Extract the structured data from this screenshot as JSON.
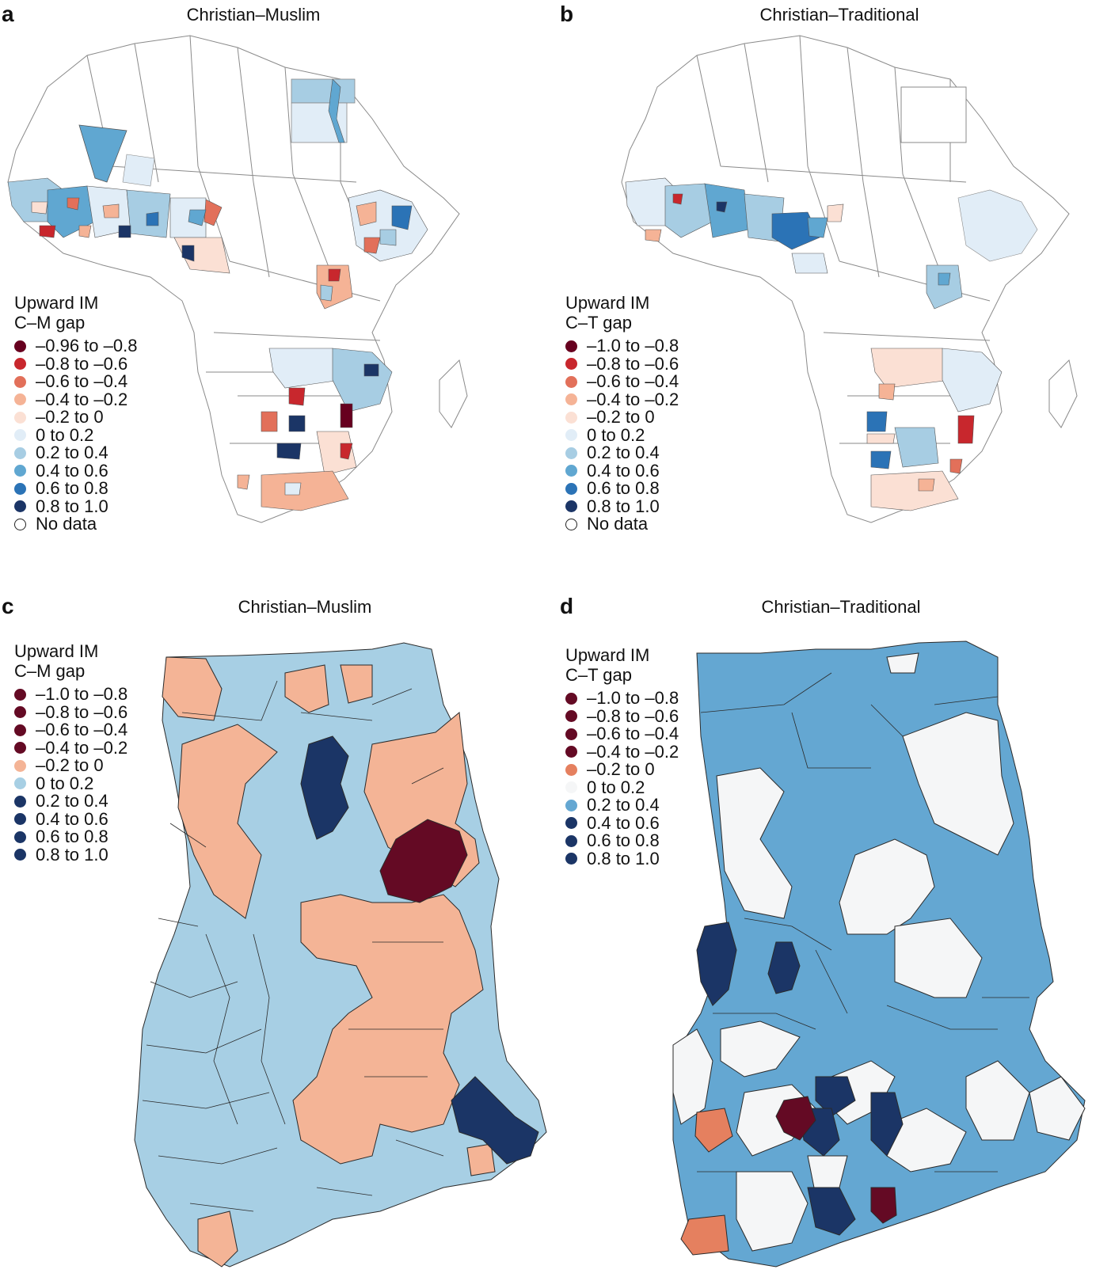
{
  "colors": {
    "neg96": "#67001f",
    "neg8": "#c8272d",
    "neg6": "#e2705a",
    "neg4": "#f5b396",
    "neg2": "#fbe0d4",
    "pos0": "#e1edf7",
    "pos2": "#a7cde3",
    "pos4": "#60a7d1",
    "pos6": "#2b73b6",
    "pos8": "#1b3566",
    "ghana_neg": "#f4b496",
    "ghana_pos": "#a7cfe4",
    "ghana_dark": "#1b3566",
    "ghana_red": "#640a24",
    "d_light": "#f5f6f7",
    "d_mid": "#64a7d2",
    "d_orange": "#e5805f",
    "border": "#2a2a2a",
    "grid": "#9a9a9a"
  },
  "panels": {
    "a": {
      "letter": "a",
      "title": "Christian–Muslim",
      "legend_title": [
        "Upward IM",
        "C–M gap"
      ],
      "legend_items": [
        {
          "label": "–0.96 to –0.8",
          "color": "#67001f"
        },
        {
          "label": "–0.8 to –0.6",
          "color": "#c8272d"
        },
        {
          "label": "–0.6 to –0.4",
          "color": "#e2705a"
        },
        {
          "label": "–0.4 to –0.2",
          "color": "#f5b396"
        },
        {
          "label": "–0.2 to 0",
          "color": "#fbe0d4"
        },
        {
          "label": "0 to 0.2",
          "color": "#e1edf7"
        },
        {
          "label": "0.2 to 0.4",
          "color": "#a7cde3"
        },
        {
          "label": "0.4 to 0.6",
          "color": "#60a7d1"
        },
        {
          "label": "0.6 to 0.8",
          "color": "#2b73b6"
        },
        {
          "label": "0.8 to 1.0",
          "color": "#1b3566"
        },
        {
          "label": "No data",
          "color": "nodata"
        }
      ]
    },
    "b": {
      "letter": "b",
      "title": "Christian–Traditional",
      "legend_title": [
        "Upward IM",
        "C–T gap"
      ],
      "legend_items": [
        {
          "label": "–1.0 to –0.8",
          "color": "#67001f"
        },
        {
          "label": "–0.8 to –0.6",
          "color": "#c8272d"
        },
        {
          "label": "–0.6 to –0.4",
          "color": "#e2705a"
        },
        {
          "label": "–0.4 to –0.2",
          "color": "#f5b396"
        },
        {
          "label": "–0.2 to 0",
          "color": "#fbe0d4"
        },
        {
          "label": "0 to 0.2",
          "color": "#e1edf7"
        },
        {
          "label": "0.2 to 0.4",
          "color": "#a7cde3"
        },
        {
          "label": "0.4 to 0.6",
          "color": "#60a7d1"
        },
        {
          "label": "0.6 to 0.8",
          "color": "#2b73b6"
        },
        {
          "label": "0.8 to 1.0",
          "color": "#1b3566"
        },
        {
          "label": "No data",
          "color": "nodata"
        }
      ]
    },
    "c": {
      "letter": "c",
      "title": "Christian–Muslim",
      "legend_title": [
        "Upward IM",
        "C–M gap"
      ],
      "legend_items": [
        {
          "label": "–1.0 to –0.8",
          "color": "#640a24"
        },
        {
          "label": "–0.8 to –0.6",
          "color": "#640a24"
        },
        {
          "label": "–0.6 to –0.4",
          "color": "#640a24"
        },
        {
          "label": "–0.4 to –0.2",
          "color": "#640a24"
        },
        {
          "label": "–0.2 to 0",
          "color": "#f4b496"
        },
        {
          "label": "0 to 0.2",
          "color": "#a7cfe4"
        },
        {
          "label": "0.2 to 0.4",
          "color": "#1b3566"
        },
        {
          "label": "0.4 to 0.6",
          "color": "#1b3566"
        },
        {
          "label": "0.6 to 0.8",
          "color": "#1b3566"
        },
        {
          "label": "0.8 to 1.0",
          "color": "#1b3566"
        }
      ]
    },
    "d": {
      "letter": "d",
      "title": "Christian–Traditional",
      "legend_title": [
        "Upward IM",
        "C–T gap"
      ],
      "legend_items": [
        {
          "label": "–1.0 to –0.8",
          "color": "#640a24"
        },
        {
          "label": "–0.8 to –0.6",
          "color": "#640a24"
        },
        {
          "label": "–0.6 to –0.4",
          "color": "#640a24"
        },
        {
          "label": "–0.4 to –0.2",
          "color": "#640a24"
        },
        {
          "label": "–0.2 to 0",
          "color": "#e5805f"
        },
        {
          "label": "0 to 0.2",
          "color": "#f5f6f7"
        },
        {
          "label": "0.2 to 0.4",
          "color": "#64a7d2"
        },
        {
          "label": "0.4 to 0.6",
          "color": "#1b3566"
        },
        {
          "label": "0.6 to 0.8",
          "color": "#1b3566"
        },
        {
          "label": "0.8 to 1.0",
          "color": "#1b3566"
        }
      ]
    }
  }
}
